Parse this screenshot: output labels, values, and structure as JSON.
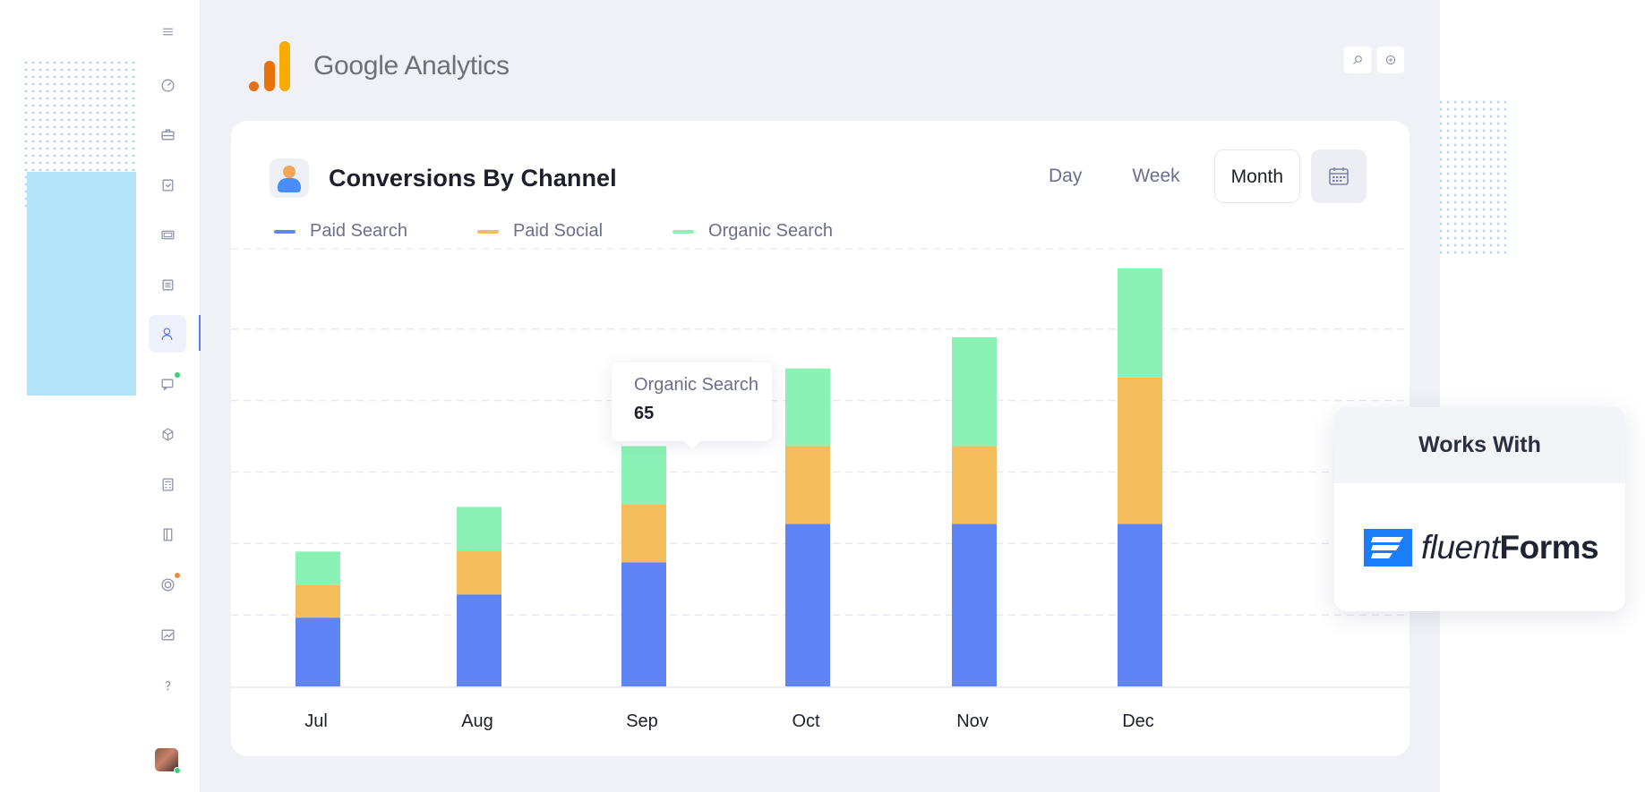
{
  "app": {
    "brand_title_1": "Google",
    "brand_title_2": " Analytics",
    "sidebar_icons": [
      "menu-icon",
      "dashboard-icon",
      "briefcase-icon",
      "clipboard-icon",
      "layers-icon",
      "list-icon",
      "user-icon",
      "chat-icon",
      "box-icon",
      "calculator-icon",
      "book-icon",
      "target-icon",
      "chart-icon",
      "help-icon"
    ],
    "active_sidebar": "user-icon",
    "top_buttons": [
      "search-icon",
      "plus-icon"
    ]
  },
  "card": {
    "title": "Conversions By Channel",
    "range_options": [
      "Day",
      "Week",
      "Month"
    ],
    "selected_range": "Month",
    "calendar_icon": "calendar-icon"
  },
  "legend": [
    {
      "label": "Paid Search",
      "color": "#5f84f5"
    },
    {
      "label": "Paid Social",
      "color": "#f4bd5c"
    },
    {
      "label": "Organic Search",
      "color": "#8bf2b6"
    }
  ],
  "tooltip": {
    "series": "Organic Search",
    "value": "65"
  },
  "chart_data": {
    "type": "bar",
    "stacked": true,
    "categories": [
      "Jul",
      "Aug",
      "Sep",
      "Oct",
      "Nov",
      "Dec"
    ],
    "series": [
      {
        "name": "Paid Search",
        "color": "#5f84f5",
        "values": [
          77,
          103,
          139,
          182,
          182,
          182
        ]
      },
      {
        "name": "Paid Social",
        "color": "#f4bd5c",
        "values": [
          37,
          49,
          65,
          87,
          87,
          164
        ]
      },
      {
        "name": "Organic Search",
        "color": "#8bf2b6",
        "values": [
          37,
          49,
          65,
          87,
          122,
          122
        ]
      }
    ],
    "ylim": [
      0,
      490
    ],
    "grid": true,
    "gridlines": [
      80,
      160,
      240,
      320,
      400,
      490
    ],
    "legend_position": "top-left"
  },
  "works_with": {
    "heading": "Works With",
    "brand_light": "fluent",
    "brand_bold": "Forms"
  }
}
